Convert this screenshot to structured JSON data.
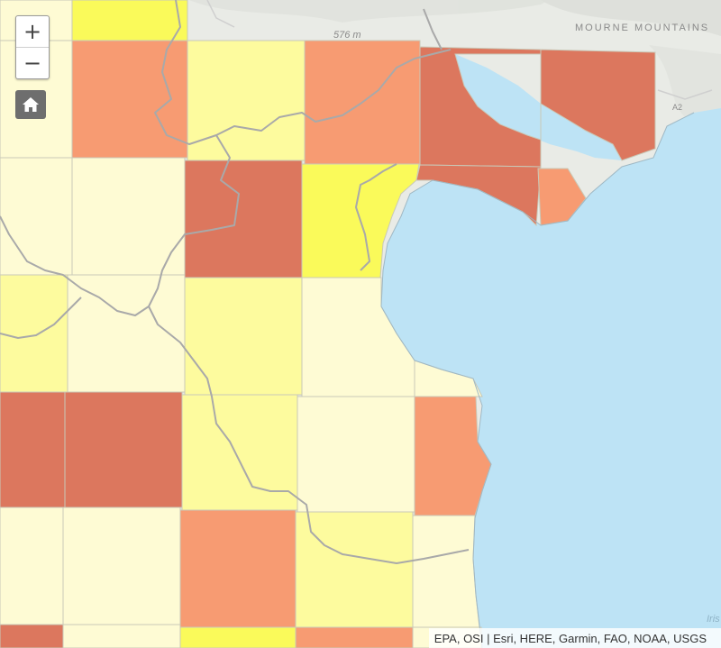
{
  "map": {
    "labels": {
      "mountains": "MOURNE MOUNTAINS",
      "elevation": "576 m",
      "road": "A2",
      "sea_partial": "Iris"
    },
    "colors": {
      "water": "#bde3f5",
      "land": "#e9ebe6",
      "boundary": "#a9a9a9",
      "class_1": "#fefbd4",
      "class_2": "#fdfb9e",
      "class_3": "#fafa5a",
      "class_4": "#f79b72",
      "class_5": "#dc775e"
    }
  },
  "controls": {
    "zoom_in_label": "+",
    "zoom_out_label": "−",
    "home_icon": "home-icon"
  },
  "attribution": {
    "text": "EPA, OSI | Esri, HERE, Garmin, FAO, NOAA, USGS"
  }
}
